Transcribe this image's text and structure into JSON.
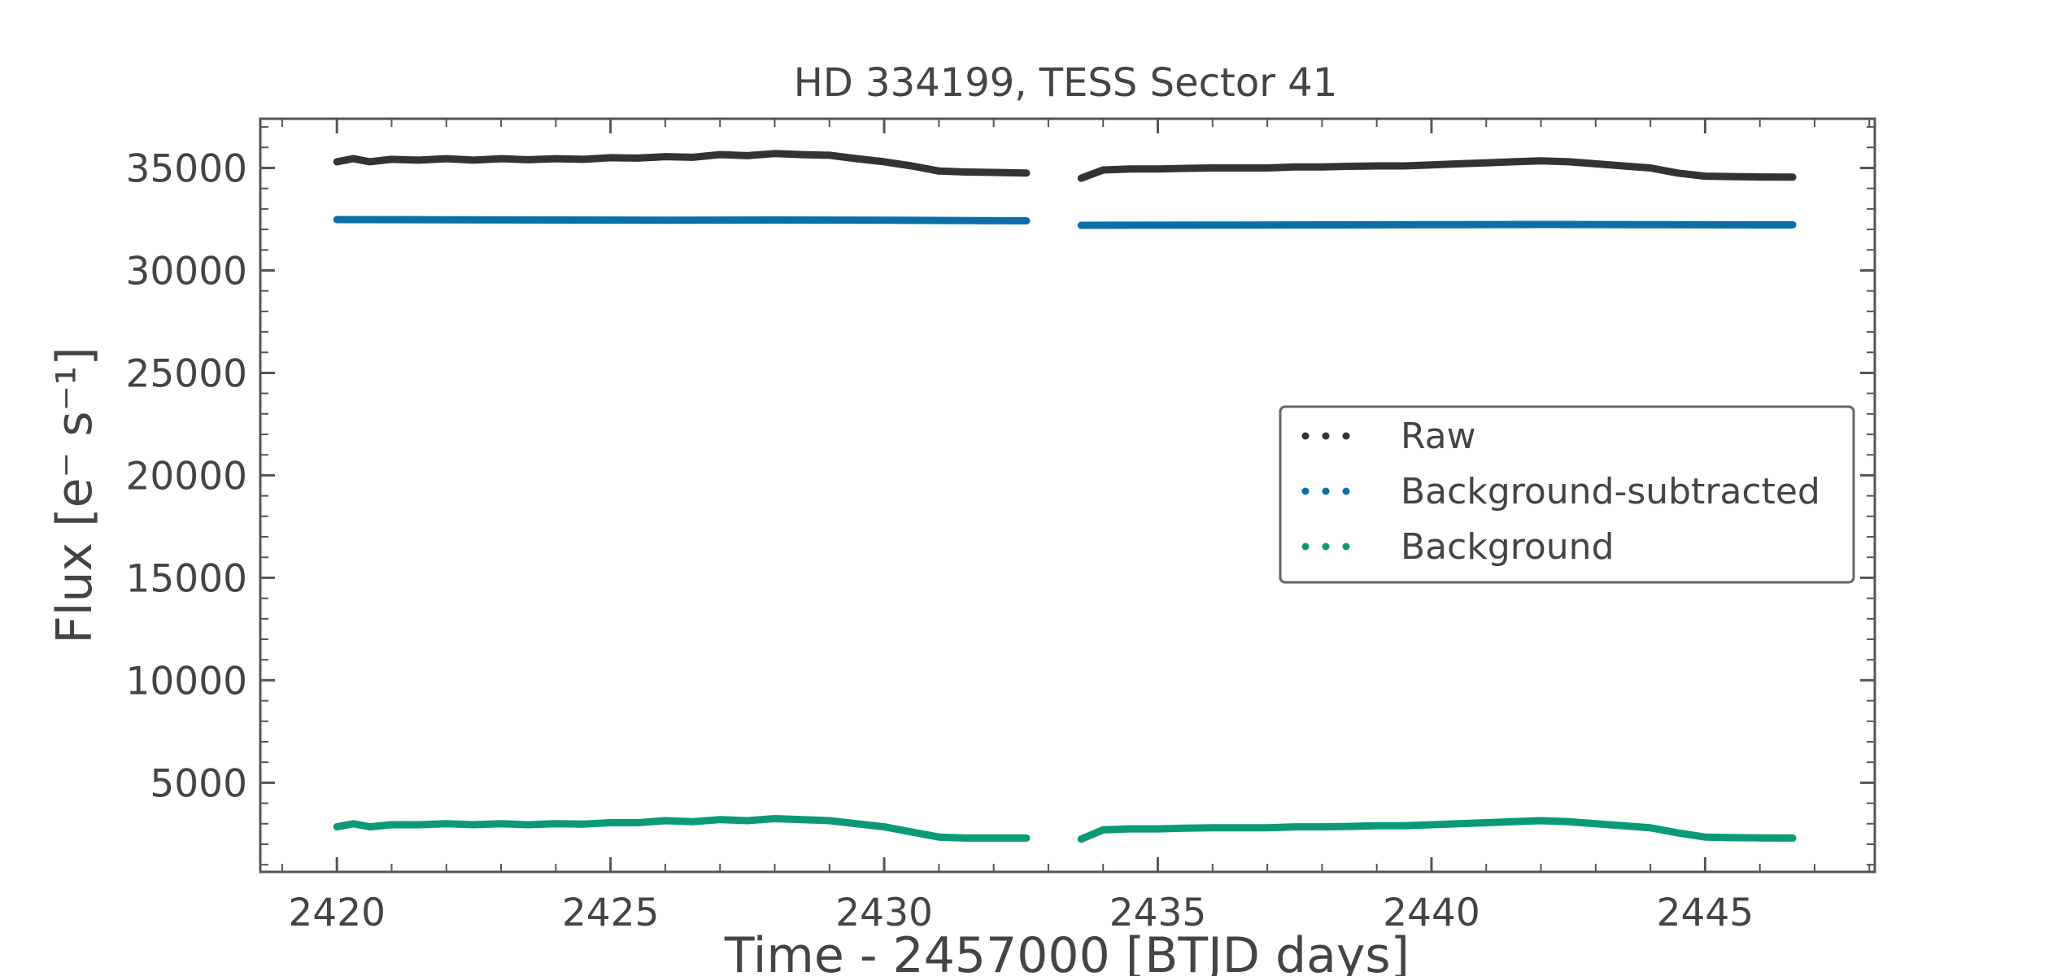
{
  "chart_data": {
    "type": "scatter",
    "title": "HD 334199, TESS Sector 41",
    "xlabel": "Time - 2457000 [BTJD days]",
    "ylabel": "Flux [e⁻ s⁻¹]",
    "xlim": [
      2418.6,
      2448.1
    ],
    "ylim": [
      650,
      37400
    ],
    "x_ticks": [
      2420,
      2425,
      2430,
      2435,
      2440,
      2445
    ],
    "y_ticks": [
      5000,
      10000,
      15000,
      20000,
      25000,
      30000,
      35000
    ],
    "x_tick_labels": [
      "2420",
      "2425",
      "2430",
      "2435",
      "2440",
      "2445"
    ],
    "y_tick_labels": [
      "5000",
      "10000",
      "15000",
      "20000",
      "25000",
      "30000",
      "35000"
    ],
    "grid": false,
    "legend_position": "center-right",
    "segments": [
      [
        2420.0,
        2432.6
      ],
      [
        2433.6,
        2446.6
      ]
    ],
    "series": [
      {
        "name": "Raw",
        "color": "#333333",
        "points": [
          [
            2420.0,
            35300
          ],
          [
            2420.3,
            35450
          ],
          [
            2420.6,
            35300
          ],
          [
            2421.0,
            35420
          ],
          [
            2421.5,
            35380
          ],
          [
            2422.0,
            35450
          ],
          [
            2422.5,
            35380
          ],
          [
            2423.0,
            35450
          ],
          [
            2423.5,
            35400
          ],
          [
            2424.0,
            35450
          ],
          [
            2424.5,
            35420
          ],
          [
            2425.0,
            35500
          ],
          [
            2425.5,
            35480
          ],
          [
            2426.0,
            35550
          ],
          [
            2426.5,
            35520
          ],
          [
            2427.0,
            35650
          ],
          [
            2427.5,
            35600
          ],
          [
            2428.0,
            35700
          ],
          [
            2428.5,
            35650
          ],
          [
            2429.0,
            35620
          ],
          [
            2429.5,
            35450
          ],
          [
            2430.0,
            35300
          ],
          [
            2430.5,
            35100
          ],
          [
            2431.0,
            34850
          ],
          [
            2431.5,
            34800
          ],
          [
            2432.0,
            34780
          ],
          [
            2432.6,
            34750
          ],
          [
            2433.6,
            34500
          ],
          [
            2434.0,
            34900
          ],
          [
            2434.5,
            34950
          ],
          [
            2435.0,
            34950
          ],
          [
            2435.5,
            34980
          ],
          [
            2436.0,
            35000
          ],
          [
            2436.5,
            35000
          ],
          [
            2437.0,
            35000
          ],
          [
            2437.5,
            35050
          ],
          [
            2438.0,
            35050
          ],
          [
            2438.5,
            35080
          ],
          [
            2439.0,
            35100
          ],
          [
            2439.5,
            35100
          ],
          [
            2440.0,
            35150
          ],
          [
            2440.5,
            35200
          ],
          [
            2441.0,
            35250
          ],
          [
            2441.5,
            35300
          ],
          [
            2442.0,
            35350
          ],
          [
            2442.5,
            35300
          ],
          [
            2443.0,
            35200
          ],
          [
            2443.5,
            35100
          ],
          [
            2444.0,
            35000
          ],
          [
            2444.5,
            34750
          ],
          [
            2445.0,
            34600
          ],
          [
            2445.5,
            34580
          ],
          [
            2446.0,
            34560
          ],
          [
            2446.6,
            34550
          ]
        ]
      },
      {
        "name": "Background-subtracted",
        "color": "#0a6fa8",
        "points": [
          [
            2420.0,
            32480
          ],
          [
            2422.0,
            32470
          ],
          [
            2424.0,
            32460
          ],
          [
            2426.0,
            32450
          ],
          [
            2428.0,
            32460
          ],
          [
            2430.0,
            32450
          ],
          [
            2432.6,
            32420
          ],
          [
            2433.6,
            32200
          ],
          [
            2436.0,
            32210
          ],
          [
            2438.0,
            32220
          ],
          [
            2440.0,
            32230
          ],
          [
            2442.0,
            32240
          ],
          [
            2444.0,
            32230
          ],
          [
            2446.6,
            32220
          ]
        ]
      },
      {
        "name": "Background",
        "color": "#0b9a77",
        "points": [
          [
            2420.0,
            2850
          ],
          [
            2420.3,
            3000
          ],
          [
            2420.6,
            2850
          ],
          [
            2421.0,
            2950
          ],
          [
            2421.5,
            2950
          ],
          [
            2422.0,
            3000
          ],
          [
            2422.5,
            2950
          ],
          [
            2423.0,
            3000
          ],
          [
            2423.5,
            2950
          ],
          [
            2424.0,
            3000
          ],
          [
            2424.5,
            2980
          ],
          [
            2425.0,
            3050
          ],
          [
            2425.5,
            3050
          ],
          [
            2426.0,
            3150
          ],
          [
            2426.5,
            3100
          ],
          [
            2427.0,
            3200
          ],
          [
            2427.5,
            3150
          ],
          [
            2428.0,
            3250
          ],
          [
            2428.5,
            3200
          ],
          [
            2429.0,
            3150
          ],
          [
            2429.5,
            3000
          ],
          [
            2430.0,
            2850
          ],
          [
            2430.5,
            2600
          ],
          [
            2431.0,
            2350
          ],
          [
            2431.5,
            2300
          ],
          [
            2432.0,
            2300
          ],
          [
            2432.6,
            2300
          ],
          [
            2433.6,
            2250
          ],
          [
            2434.0,
            2700
          ],
          [
            2434.5,
            2750
          ],
          [
            2435.0,
            2750
          ],
          [
            2435.5,
            2780
          ],
          [
            2436.0,
            2800
          ],
          [
            2436.5,
            2800
          ],
          [
            2437.0,
            2800
          ],
          [
            2437.5,
            2850
          ],
          [
            2438.0,
            2850
          ],
          [
            2438.5,
            2870
          ],
          [
            2439.0,
            2900
          ],
          [
            2439.5,
            2900
          ],
          [
            2440.0,
            2950
          ],
          [
            2440.5,
            3000
          ],
          [
            2441.0,
            3050
          ],
          [
            2441.5,
            3100
          ],
          [
            2442.0,
            3150
          ],
          [
            2442.5,
            3100
          ],
          [
            2443.0,
            3000
          ],
          [
            2443.5,
            2900
          ],
          [
            2444.0,
            2800
          ],
          [
            2444.5,
            2550
          ],
          [
            2445.0,
            2350
          ],
          [
            2445.5,
            2320
          ],
          [
            2446.0,
            2310
          ],
          [
            2446.6,
            2300
          ]
        ]
      }
    ]
  }
}
